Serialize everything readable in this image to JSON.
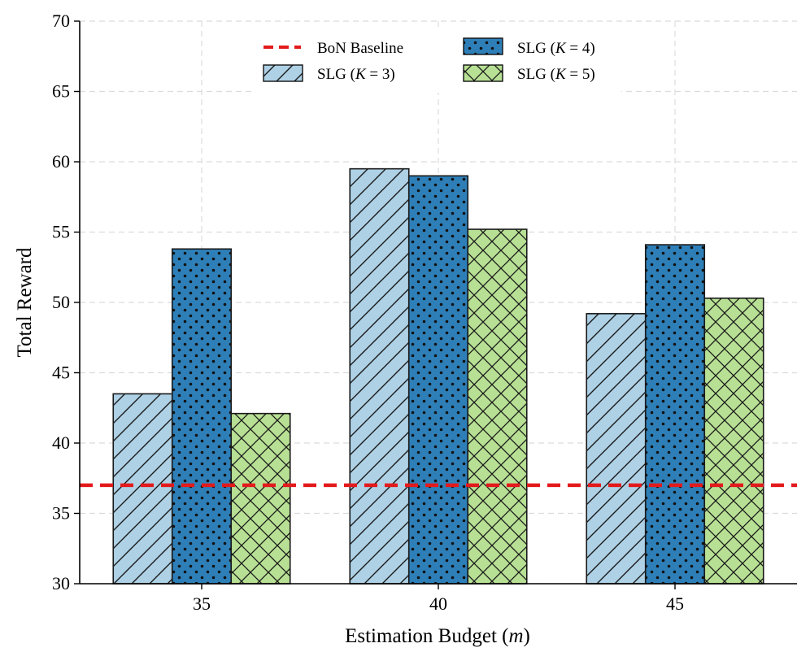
{
  "chart_data": {
    "type": "bar",
    "title": "",
    "xlabel": "Estimation Budget (m)",
    "xlabel_text": "Estimation Budget (",
    "xlabel_var": "m",
    "xlabel_close": ")",
    "ylabel": "Total Reward",
    "ylim": [
      30,
      70
    ],
    "yticks": [
      30,
      35,
      40,
      45,
      50,
      55,
      60,
      65,
      70
    ],
    "grid": true,
    "legend_position": "top-center",
    "categories": [
      "35",
      "40",
      "45"
    ],
    "series": [
      {
        "name": "SLG (K=3)",
        "label_prefix": "SLG (",
        "label_var": "K",
        "label_value": " = 3)",
        "color": "#aed1e6",
        "pattern": "hatch-diagonal",
        "values": [
          43.5,
          59.5,
          49.2
        ]
      },
      {
        "name": "SLG (K=4)",
        "label_prefix": "SLG (",
        "label_var": "K",
        "label_value": " = 4)",
        "color": "#2e7fb8",
        "pattern": "dots",
        "values": [
          53.8,
          59.0,
          54.1
        ]
      },
      {
        "name": "SLG (K=5)",
        "label_prefix": "SLG (",
        "label_var": "K",
        "label_value": " = 5)",
        "color": "#b7e094",
        "pattern": "hatch-cross",
        "values": [
          42.1,
          55.2,
          50.3
        ]
      }
    ],
    "baseline": {
      "name": "BoN Baseline",
      "value": 37,
      "color": "#e31a1c",
      "style": "dashed"
    }
  }
}
